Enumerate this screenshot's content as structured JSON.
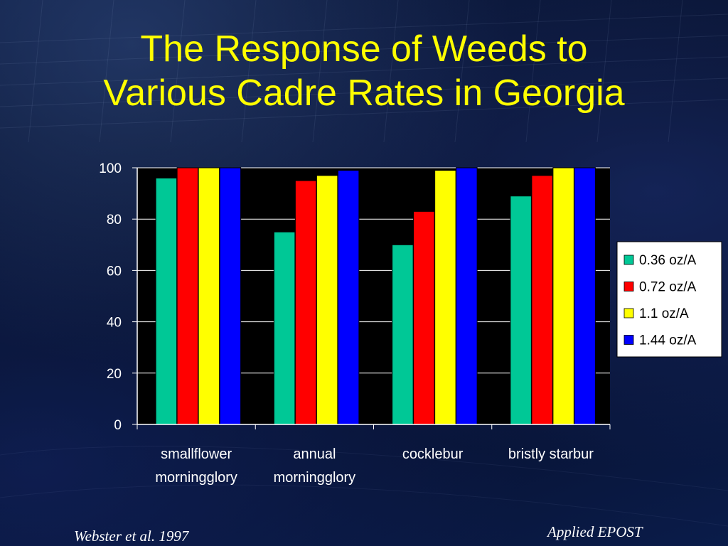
{
  "slide": {
    "title_line1": "The Response of Weeds to",
    "title_line2": "Various Cadre Rates in Georgia",
    "citation": "Webster et al. 1997",
    "footer_brand": "Applied EPOST",
    "title_color": "#ffff00"
  },
  "chart_data": {
    "type": "bar",
    "title": "",
    "xlabel": "",
    "ylabel": "",
    "ylim": [
      0,
      100
    ],
    "yticks": [
      "0",
      "20",
      "40",
      "60",
      "80",
      "100"
    ],
    "grid": true,
    "legend_position": "right",
    "plot_background": "#000000",
    "categories": [
      [
        "smallflower",
        "morningglory"
      ],
      [
        "annual",
        "morningglory"
      ],
      [
        "cocklebur"
      ],
      [
        "bristly starbur"
      ]
    ],
    "series": [
      {
        "name": "0.36 oz/A",
        "color": "#00c896",
        "values": [
          96,
          75,
          70,
          89
        ]
      },
      {
        "name": "0.72 oz/A",
        "color": "#ff0000",
        "values": [
          100,
          95,
          83,
          97
        ]
      },
      {
        "name": "1.1 oz/A",
        "color": "#ffff00",
        "values": [
          100,
          97,
          99,
          100
        ]
      },
      {
        "name": "1.44 oz/A",
        "color": "#0000ff",
        "values": [
          100,
          99,
          100,
          100
        ]
      }
    ]
  }
}
